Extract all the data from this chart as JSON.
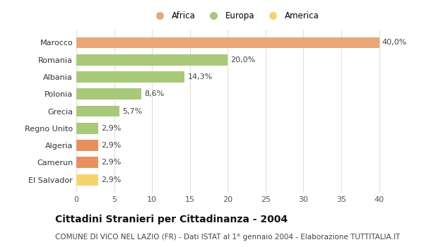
{
  "categories": [
    "El Salvador",
    "Camerun",
    "Algeria",
    "Regno Unito",
    "Grecia",
    "Polonia",
    "Albania",
    "Romania",
    "Marocco"
  ],
  "values": [
    2.9,
    2.9,
    2.9,
    2.9,
    5.7,
    8.6,
    14.3,
    20.0,
    40.0
  ],
  "colors": [
    "#f5d470",
    "#e89060",
    "#e89060",
    "#a8c87a",
    "#a8c87a",
    "#a8c87a",
    "#a8c87a",
    "#a8c87a",
    "#e8a878"
  ],
  "labels": [
    "2,9%",
    "2,9%",
    "2,9%",
    "2,9%",
    "5,7%",
    "8,6%",
    "14,3%",
    "20,0%",
    "40,0%"
  ],
  "legend": [
    {
      "label": "Africa",
      "color": "#e8a878"
    },
    {
      "label": "Europa",
      "color": "#a8c87a"
    },
    {
      "label": "America",
      "color": "#f5d470"
    }
  ],
  "xlim": [
    0,
    42
  ],
  "xticks": [
    0,
    5,
    10,
    15,
    20,
    25,
    30,
    35,
    40
  ],
  "title": "Cittadini Stranieri per Cittadinanza - 2004",
  "subtitle": "COMUNE DI VICO NEL LAZIO (FR) - Dati ISTAT al 1° gennaio 2004 - Elaborazione TUTTITALIA.IT",
  "background_color": "#ffffff",
  "plot_bg_color": "#ffffff",
  "grid_color": "#e0e0d0",
  "bar_height": 0.65,
  "title_fontsize": 10,
  "subtitle_fontsize": 7.5,
  "tick_fontsize": 8,
  "label_fontsize": 8,
  "legend_fontsize": 8.5
}
